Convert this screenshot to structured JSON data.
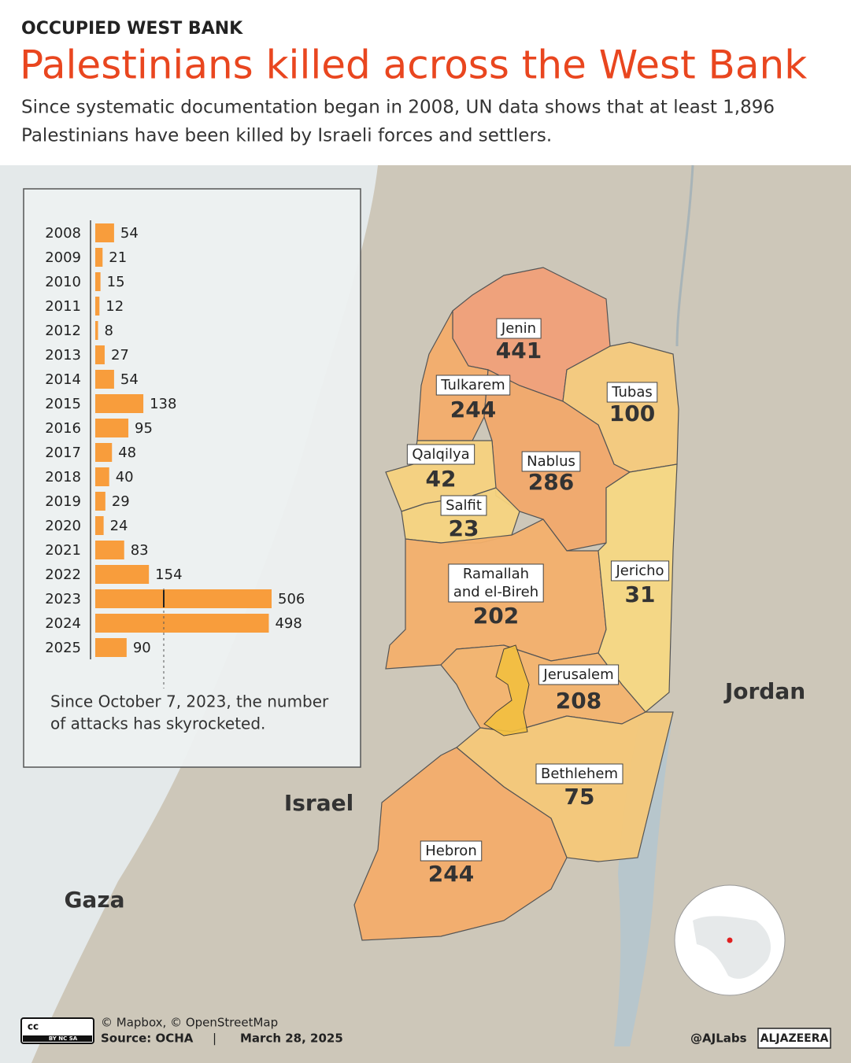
{
  "header": {
    "kicker": "OCCUPIED WEST BANK",
    "title": "Palestinians killed across the West Bank",
    "subtitle": [
      "Since systematic documentation began in 2008, UN data shows that at least 1,896",
      "Palestinians have been killed by Israeli forces and settlers."
    ]
  },
  "chart_data": {
    "type": "bar",
    "orientation": "horizontal",
    "color": "#f89d3c",
    "categories": [
      "2008",
      "2009",
      "2010",
      "2011",
      "2012",
      "2013",
      "2014",
      "2015",
      "2016",
      "2017",
      "2018",
      "2019",
      "2020",
      "2021",
      "2022",
      "2023",
      "2024",
      "2025"
    ],
    "values": [
      54,
      21,
      15,
      12,
      8,
      27,
      54,
      138,
      95,
      48,
      40,
      29,
      24,
      83,
      154,
      506,
      498,
      90
    ],
    "annotation": [
      "Since October 7, 2023, the number",
      "of attacks has skyrocketed."
    ]
  },
  "map": {
    "regions": [
      {
        "name": [
          "Jenin"
        ],
        "value": 441,
        "color": "#f0a078"
      },
      {
        "name": [
          "Tubas"
        ],
        "value": 100,
        "color": "#f4ca7c"
      },
      {
        "name": [
          "Tulkarem"
        ],
        "value": 244,
        "color": "#f3ad6a"
      },
      {
        "name": [
          "Nablus"
        ],
        "value": 286,
        "color": "#f1a96a"
      },
      {
        "name": [
          "Qalqilya"
        ],
        "value": 42,
        "color": "#f5d27e"
      },
      {
        "name": [
          "Salfit"
        ],
        "value": 23,
        "color": "#f5d480"
      },
      {
        "name": [
          "Ramallah",
          "and el-Bireh"
        ],
        "value": 202,
        "color": "#f3b06c"
      },
      {
        "name": [
          "Jericho"
        ],
        "value": 31,
        "color": "#f6d883"
      },
      {
        "name": [
          "Jerusalem"
        ],
        "value": 208,
        "color": "#f3b46e"
      },
      {
        "name": [
          "Bethlehem"
        ],
        "value": 75,
        "color": "#f4c878"
      },
      {
        "name": [
          "Hebron"
        ],
        "value": 244,
        "color": "#f3ad6a"
      }
    ],
    "countries": [
      "Jordan",
      "Israel",
      "Gaza"
    ]
  },
  "footer": {
    "license": [
      "cc",
      "BY NC SA"
    ],
    "credits": "© Mapbox, © OpenStreetMap",
    "source": "Source:  OCHA",
    "separator": "|",
    "date": "March 28, 2025",
    "handle": "@AJLabs",
    "brand": "ALJAZEERA"
  }
}
